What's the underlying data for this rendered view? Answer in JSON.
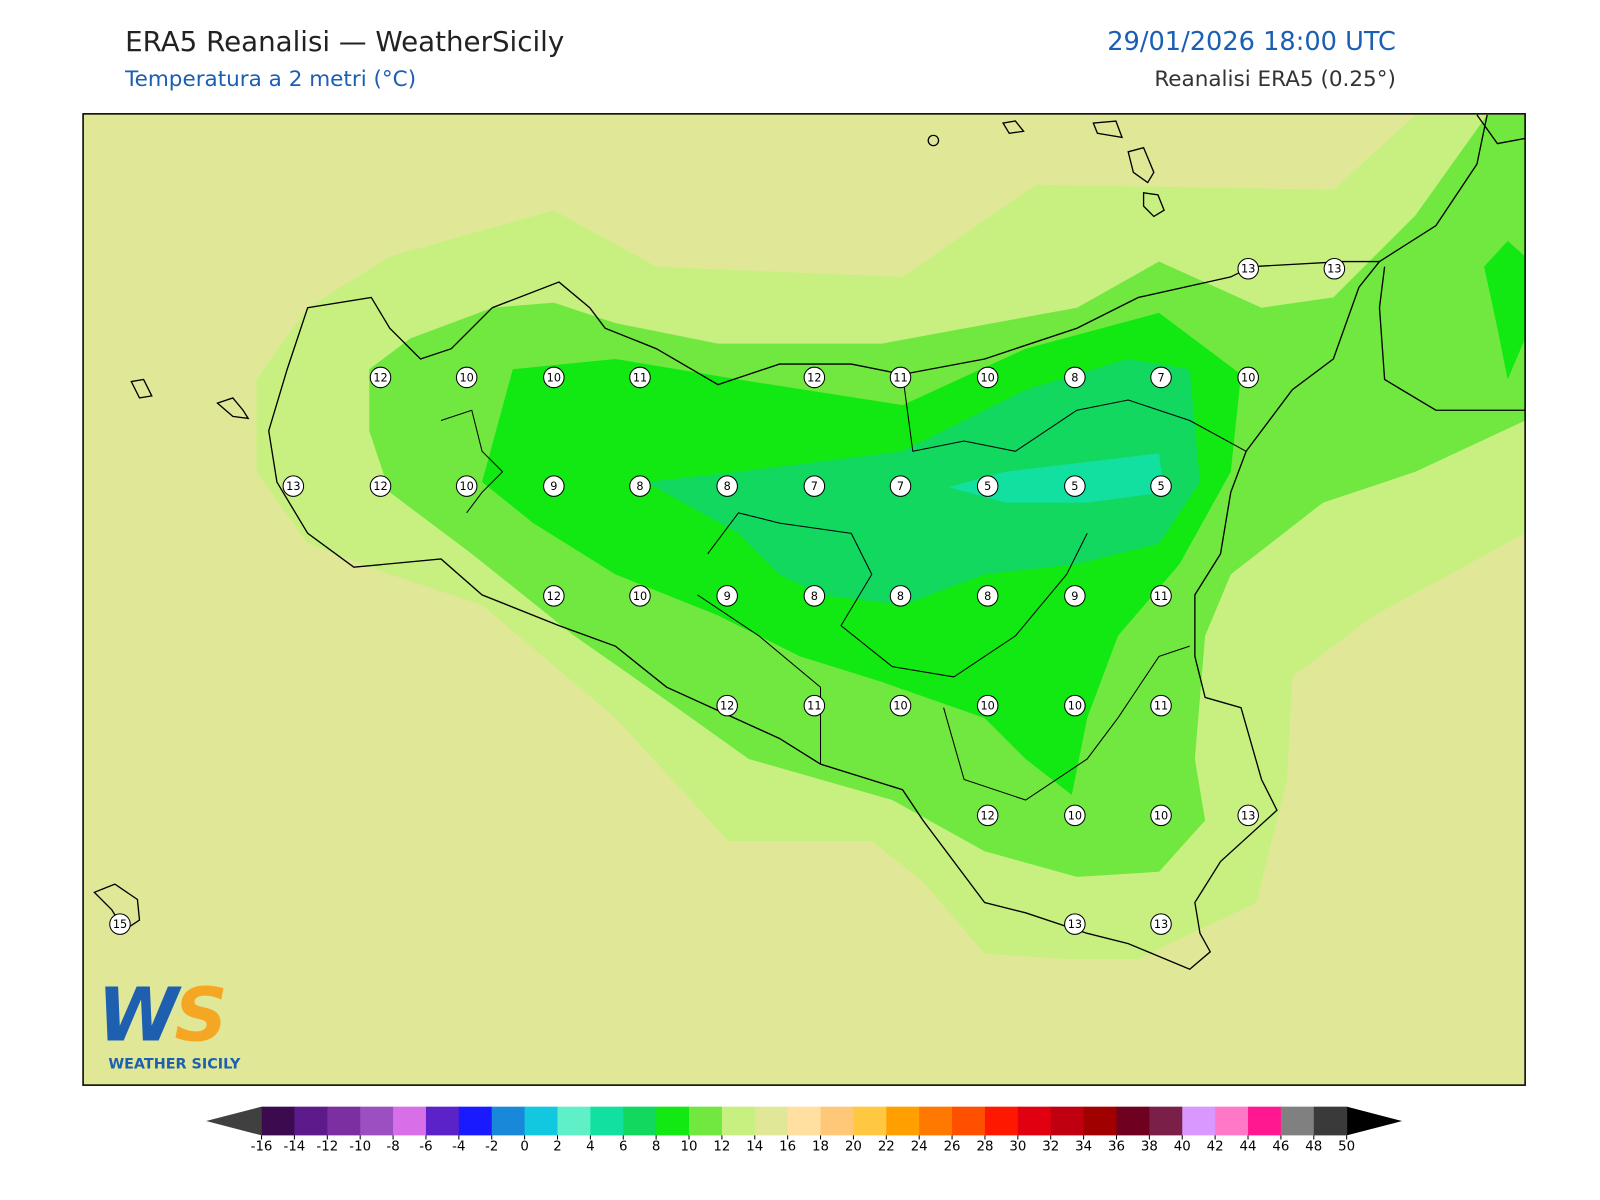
{
  "header": {
    "title": "ERA5 Reanalisi — WeatherSicily",
    "subtitle": "Temperatura a 2 metri (°C)",
    "datetime": "29/01/2026 18:00 UTC",
    "source": "Reanalisi ERA5 (0.25°)"
  },
  "map": {
    "stations": [
      13,
      13,
      12,
      10,
      10,
      11,
      12,
      11,
      10,
      8,
      7,
      10,
      13,
      12,
      10,
      9,
      8,
      8,
      7,
      7,
      5,
      5,
      5,
      12,
      10,
      9,
      8,
      8,
      8,
      9,
      11,
      12,
      11,
      10,
      10,
      10,
      11,
      12,
      10,
      10,
      13,
      15,
      13,
      13
    ]
  },
  "colorbar": {
    "ticks": [
      -16,
      -14,
      -12,
      -10,
      -8,
      -6,
      -4,
      -2,
      0,
      2,
      4,
      6,
      8,
      10,
      12,
      14,
      16,
      18,
      20,
      22,
      24,
      26,
      28,
      30,
      32,
      34,
      36,
      38,
      40,
      42,
      44,
      46,
      48,
      50
    ],
    "colors": [
      "#3b0a4f",
      "#5c1a8a",
      "#7b2fa0",
      "#9b4fc0",
      "#d86ee8",
      "#5a22c8",
      "#1a1aff",
      "#1a88d8",
      "#12c8e0",
      "#5ff0c8",
      "#12e0a0",
      "#12d860",
      "#12e812",
      "#70e840",
      "#c8f080",
      "#e0e898",
      "#ffe0a0",
      "#ffc878",
      "#ffc840",
      "#ffa000",
      "#ff7800",
      "#ff5000",
      "#ff1800",
      "#e00010",
      "#c00010",
      "#a00000",
      "#700020",
      "#7a2048",
      "#d898ff",
      "#ff78c8",
      "#ff1890",
      "#808080",
      "#3a3a3a"
    ],
    "under_color": "#404040",
    "over_color": "#000000"
  },
  "logo": {
    "mark_left": "W",
    "mark_right": "S",
    "caption": "WEATHER SICILY"
  }
}
